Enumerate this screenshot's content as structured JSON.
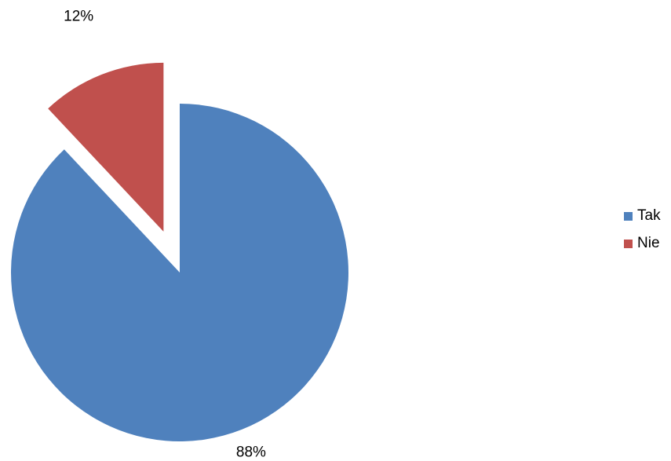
{
  "chart_data": {
    "type": "pie",
    "title": "",
    "categories": [
      "Tak",
      "Nie"
    ],
    "values": [
      88,
      12
    ],
    "value_labels": [
      "88%",
      "12%"
    ],
    "colors": [
      "#4F81BD",
      "#C0504D"
    ],
    "exploded": [
      false,
      true
    ],
    "start_angle_deg": 0,
    "direction": "clockwise",
    "legend_position": "right"
  }
}
